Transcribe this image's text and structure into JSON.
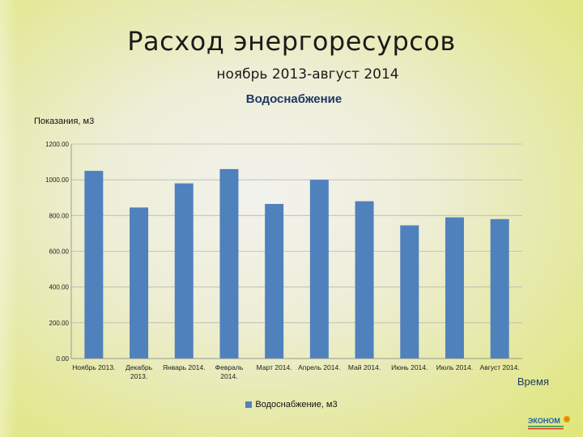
{
  "slide": {
    "title": "Расход энергоресурсов",
    "subtitle": "ноябрь 2013-август 2014"
  },
  "logo_text": "ЭКОНОМ",
  "colors": {
    "bar": "#4f81bd",
    "title_blue": "#1f3864"
  },
  "chart_data": {
    "type": "bar",
    "title": "Водоснабжение",
    "ylabel": "Показания, м3",
    "xlabel": "Время",
    "categories": [
      [
        "Ноябрь 2013."
      ],
      [
        "Декабрь",
        "2013."
      ],
      [
        "Январь 2014."
      ],
      [
        "Февраль",
        "2014."
      ],
      [
        "Март 2014."
      ],
      [
        "Апрель 2014."
      ],
      [
        "Май 2014."
      ],
      [
        "Июнь 2014."
      ],
      [
        "Июль 2014."
      ],
      [
        "Август 2014."
      ]
    ],
    "series": [
      {
        "name": "Водоснабжение, м3",
        "values": [
          1050,
          845,
          980,
          1060,
          865,
          1000,
          880,
          745,
          790,
          780
        ]
      }
    ],
    "ylim": [
      0,
      1200
    ],
    "yticks": [
      0,
      200,
      400,
      600,
      800,
      1000,
      1200
    ],
    "ytick_labels": [
      "0.00",
      "200.00",
      "400.00",
      "600.00",
      "800.00",
      "1000.00",
      "1200.00"
    ],
    "grid": true,
    "legend_position": "bottom"
  }
}
